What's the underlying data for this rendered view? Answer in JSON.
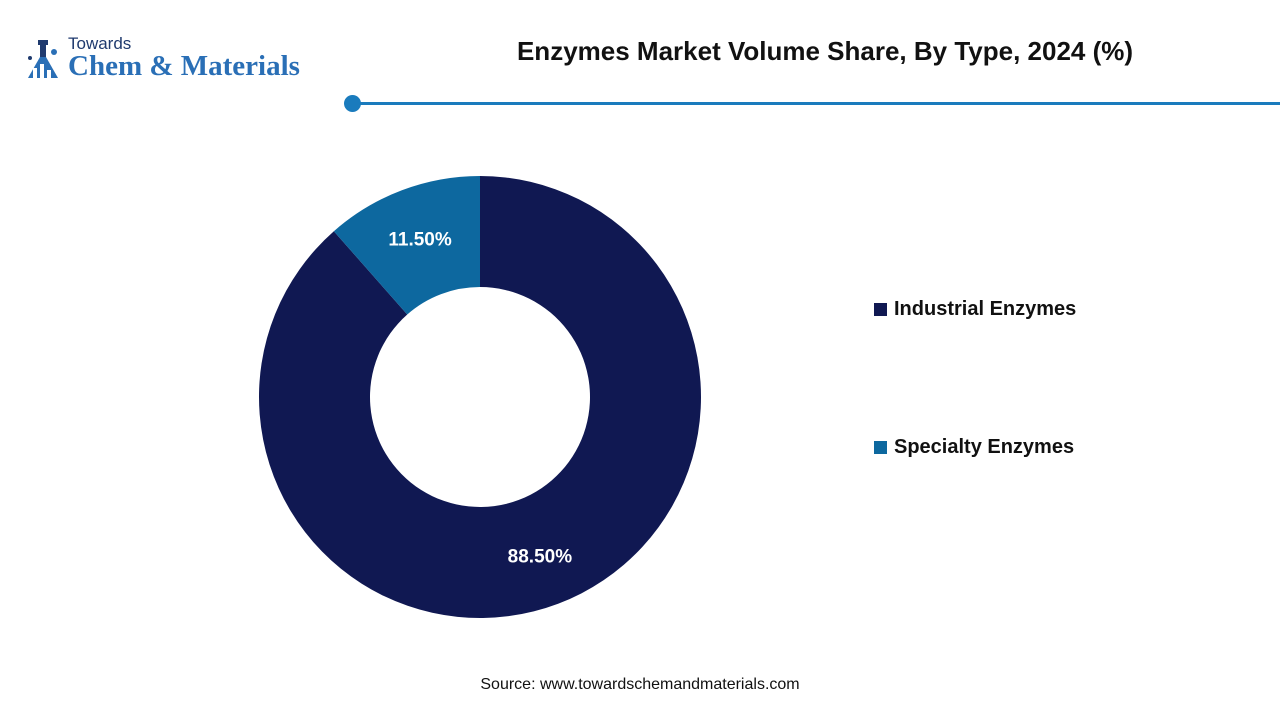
{
  "brand": {
    "top": "Towards",
    "main": "Chem & Materials",
    "accent_color": "#1a7bbd"
  },
  "title": "Enzymes Market Volume Share, By Type, 2024 (%)",
  "source": "Source: www.towardschemandmaterials.com",
  "chart_data": {
    "type": "pie",
    "title": "Enzymes Market Volume Share, By Type, 2024 (%)",
    "donut": true,
    "legend_position": "right",
    "slices": [
      {
        "name": "Industrial Enzymes",
        "value": 88.5,
        "label": "88.50%",
        "color": "#101852"
      },
      {
        "name": "Specialty Enzymes",
        "value": 11.5,
        "label": "11.50%",
        "color": "#0d689f"
      }
    ]
  }
}
